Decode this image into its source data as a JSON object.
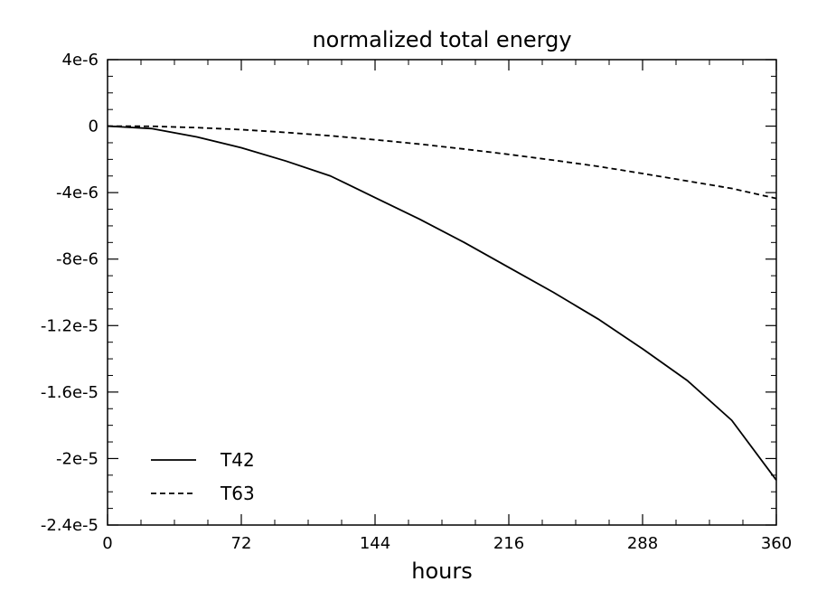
{
  "chart_data": {
    "type": "line",
    "title": "normalized total energy",
    "xlabel": "hours",
    "ylabel": "",
    "xlim": [
      0,
      360
    ],
    "ylim": [
      -2.4e-05,
      4e-06
    ],
    "xticks": [
      0,
      72,
      144,
      216,
      288,
      360
    ],
    "xtick_labels": [
      "0",
      "72",
      "144",
      "216",
      "288",
      "360"
    ],
    "yticks": [
      4e-06,
      0,
      -4e-06,
      -8e-06,
      -1.2e-05,
      -1.6e-05,
      -2e-05,
      -2.4e-05
    ],
    "ytick_labels": [
      "4e-6",
      "0",
      "-4e-6",
      "-8e-6",
      "-1.2e-5",
      "-1.6e-5",
      "-2e-5",
      "-2.4e-5"
    ],
    "grid": false,
    "legend_position": "bottom-left",
    "series": [
      {
        "name": "T42",
        "style": "solid",
        "color": "#000000",
        "x": [
          0,
          24,
          48,
          72,
          96,
          120,
          144,
          168,
          192,
          216,
          240,
          264,
          288,
          312,
          336,
          360
        ],
        "y": [
          0,
          -1.5e-07,
          -6.5e-07,
          -1.3e-06,
          -2.1e-06,
          -3e-06,
          -4.3e-06,
          -5.6e-06,
          -7e-06,
          -8.5e-06,
          -1e-05,
          -1.16e-05,
          -1.34e-05,
          -1.53e-05,
          -1.77e-05,
          -2.13e-05
        ]
      },
      {
        "name": "T63",
        "style": "dashed",
        "color": "#000000",
        "x": [
          0,
          24,
          48,
          72,
          96,
          120,
          144,
          168,
          192,
          216,
          240,
          264,
          288,
          312,
          336,
          360
        ],
        "y": [
          0,
          -1e-08,
          -9e-08,
          -2.1e-07,
          -3.8e-07,
          -5.8e-07,
          -8.2e-07,
          -1.08e-06,
          -1.38e-06,
          -1.7e-06,
          -2.05e-06,
          -2.42e-06,
          -2.85e-06,
          -3.3e-06,
          -3.75e-06,
          -4.35e-06
        ]
      }
    ]
  }
}
